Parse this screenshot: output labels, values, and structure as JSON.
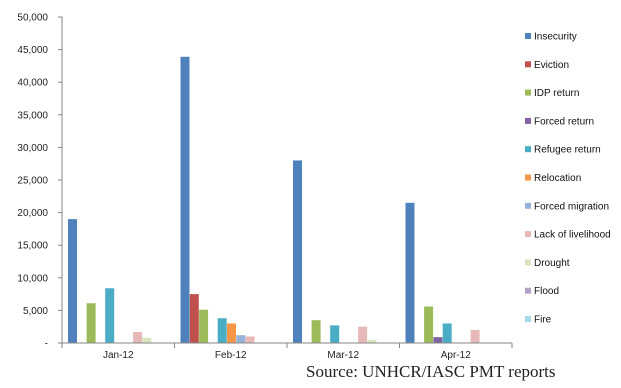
{
  "chart_data": {
    "type": "bar",
    "categories": [
      "Jan-12",
      "Feb-12",
      "Mar-12",
      "Apr-12"
    ],
    "ylim": [
      0,
      50000
    ],
    "ytick_labels": [
      "-",
      "5,000",
      "10,000",
      "15,000",
      "20,000",
      "25,000",
      "30,000",
      "35,000",
      "40,000",
      "45,000",
      "50,000"
    ],
    "legend_position": "right",
    "grid": false,
    "series": [
      {
        "name": "Insecurity",
        "color": "#4F81BD",
        "values": [
          19000,
          43900,
          28000,
          21500
        ]
      },
      {
        "name": "Eviction",
        "color": "#C0504D",
        "values": [
          0,
          7500,
          0,
          0
        ]
      },
      {
        "name": "IDP return",
        "color": "#9BBB59",
        "values": [
          6100,
          5100,
          3500,
          5600
        ]
      },
      {
        "name": "Forced return",
        "color": "#8064A2",
        "values": [
          0,
          0,
          0,
          900
        ]
      },
      {
        "name": "Refugee return",
        "color": "#4BACC6",
        "values": [
          8400,
          3800,
          2700,
          3000
        ]
      },
      {
        "name": "Relocation",
        "color": "#F79646",
        "values": [
          0,
          3000,
          0,
          0
        ]
      },
      {
        "name": "Forced migration",
        "color": "#95B3D7",
        "values": [
          0,
          1200,
          0,
          0
        ]
      },
      {
        "name": "Lack of livelihood",
        "color": "#E6B9B8",
        "values": [
          1700,
          1000,
          2500,
          2000
        ]
      },
      {
        "name": "Drought",
        "color": "#D7E4BD",
        "values": [
          800,
          0,
          500,
          0
        ]
      },
      {
        "name": "Flood",
        "color": "#B3A2C7",
        "values": [
          0,
          0,
          0,
          0
        ]
      },
      {
        "name": "Fire",
        "color": "#A5D8E8",
        "values": [
          0,
          0,
          0,
          0
        ]
      }
    ]
  },
  "source_text": "Source: UNHCR/IASC PMT reports"
}
